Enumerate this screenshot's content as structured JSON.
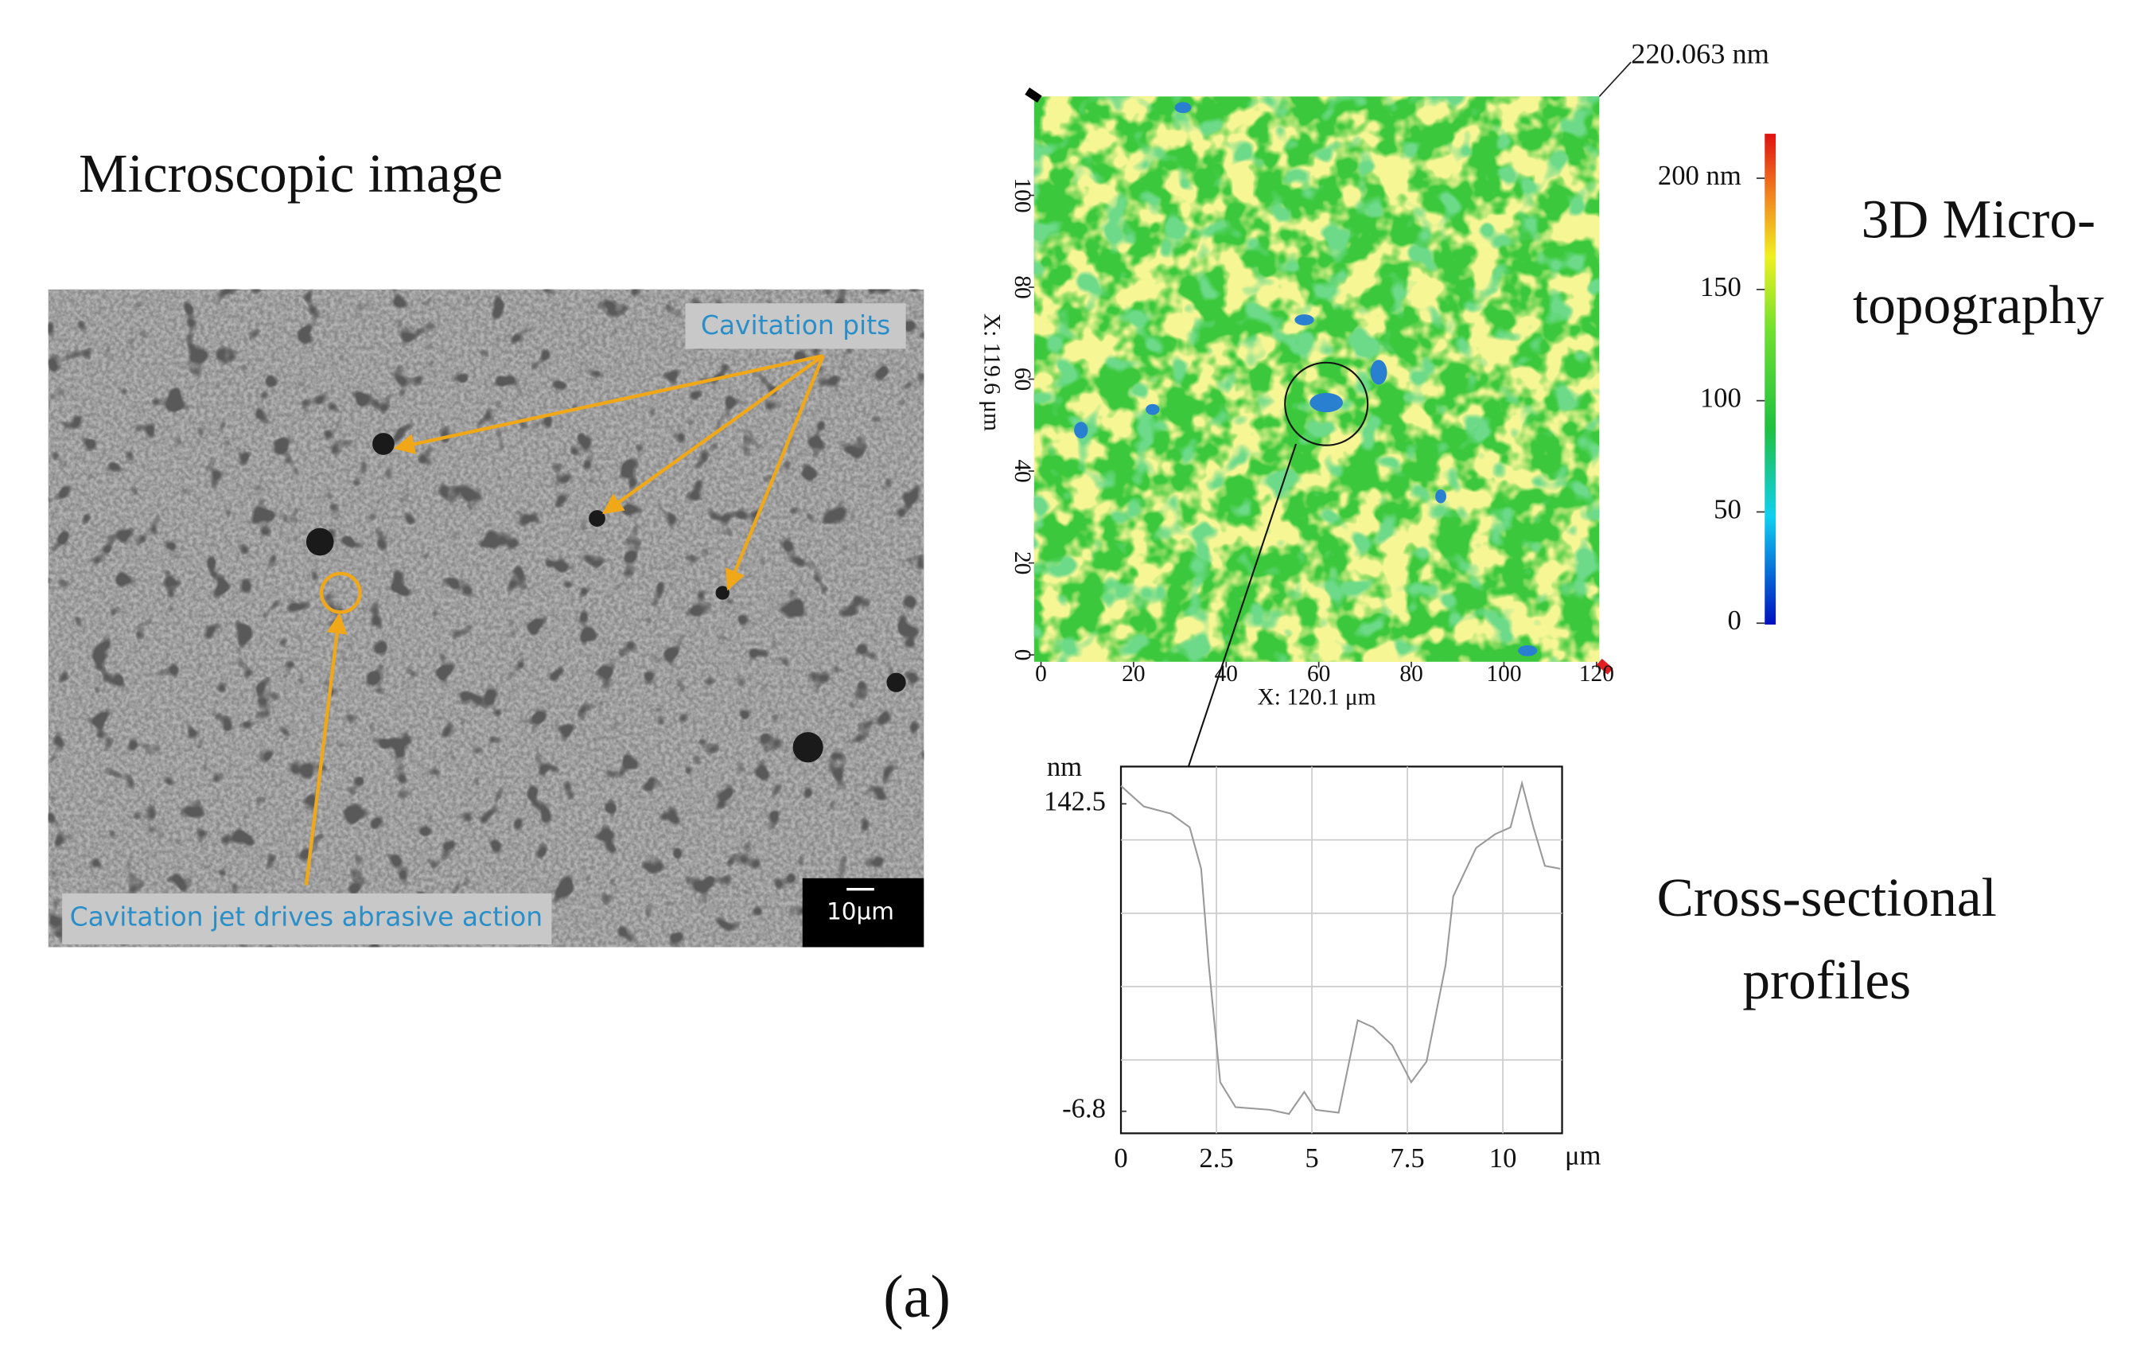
{
  "panel_label": "(a)",
  "micrograph": {
    "title": "Microscopic image",
    "labels": [
      "Cavitation pits",
      "Cavitation jet drives abrasive action"
    ],
    "scale_bar": "10µm"
  },
  "topography": {
    "title_lines": [
      "3D Micro-",
      "topography"
    ],
    "max_label": "220.063 nm",
    "x_axis_label": "X: 120.1 μm",
    "y_axis_label": "X: 119.6 μm",
    "xlim": [
      0,
      120
    ],
    "ylim": [
      0,
      120
    ],
    "xticks": [
      0,
      20,
      40,
      60,
      80,
      100,
      120
    ],
    "yticks": [
      0,
      20,
      40,
      60,
      80,
      100
    ],
    "colorbar_lim": [
      0,
      220
    ],
    "colorbar_ticks": [
      {
        "value": 200,
        "label": "200 nm"
      },
      150,
      100,
      50,
      0
    ]
  },
  "chart_data": {
    "type": "line",
    "title_lines": [
      "Cross-sectional",
      "profiles"
    ],
    "y_unit": "nm",
    "x_unit": "μm",
    "x": [
      0,
      0.6,
      1.3,
      1.8,
      2.1,
      2.3,
      2.6,
      3.0,
      3.9,
      4.4,
      4.8,
      5.1,
      5.7,
      6.2,
      6.6,
      7.1,
      7.6,
      8.0,
      8.5,
      8.7,
      9.3,
      9.8,
      10.2,
      10.5,
      10.8,
      11.1,
      11.5
    ],
    "values": [
      151.2,
      141.2,
      137.8,
      131.1,
      111,
      64.2,
      7.3,
      -4.8,
      -6.1,
      -8.1,
      2.6,
      -6.1,
      -7.5,
      37.4,
      34,
      25.3,
      7.3,
      17.3,
      64.2,
      97.6,
      121.1,
      127.8,
      131.1,
      152.5,
      131.1,
      112.4,
      111
    ],
    "color": "#999999",
    "xlim": [
      0,
      11.55
    ],
    "ylim": [
      -17.5,
      160.6
    ],
    "xticks": [
      0,
      2.5,
      5,
      7.5,
      10
    ],
    "yticks": [
      142.5,
      -6.8
    ]
  }
}
